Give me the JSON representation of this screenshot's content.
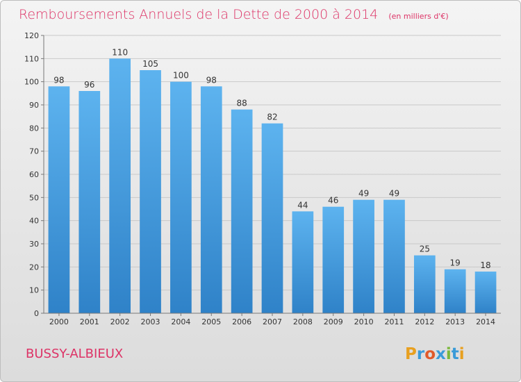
{
  "chart_data": {
    "type": "bar",
    "title": "Remboursements Annuels de la Dette de 2000 à 2014",
    "unit_label": "(en milliers d'€)",
    "categories": [
      "2000",
      "2001",
      "2002",
      "2003",
      "2004",
      "2005",
      "2006",
      "2007",
      "2008",
      "2009",
      "2010",
      "2011",
      "2012",
      "2013",
      "2014"
    ],
    "values": [
      98,
      96,
      110,
      105,
      100,
      98,
      88,
      82,
      44,
      46,
      49,
      49,
      25,
      19,
      18
    ],
    "ylim": [
      0,
      120
    ],
    "yticks": [
      0,
      10,
      20,
      30,
      40,
      50,
      60,
      70,
      80,
      90,
      100,
      110,
      120
    ],
    "grid": true,
    "bar_color": "#4aa3e6"
  },
  "commune": "BUSSY-ALBIEUX",
  "logo": {
    "letters": [
      "P",
      "r",
      "o",
      "x",
      "i",
      "t",
      "i"
    ],
    "colors": [
      "#e8a020",
      "#3a9bd8",
      "#e05a2a",
      "#3a9bd8",
      "#7ab83a",
      "#3a9bd8",
      "#e8a020"
    ]
  }
}
